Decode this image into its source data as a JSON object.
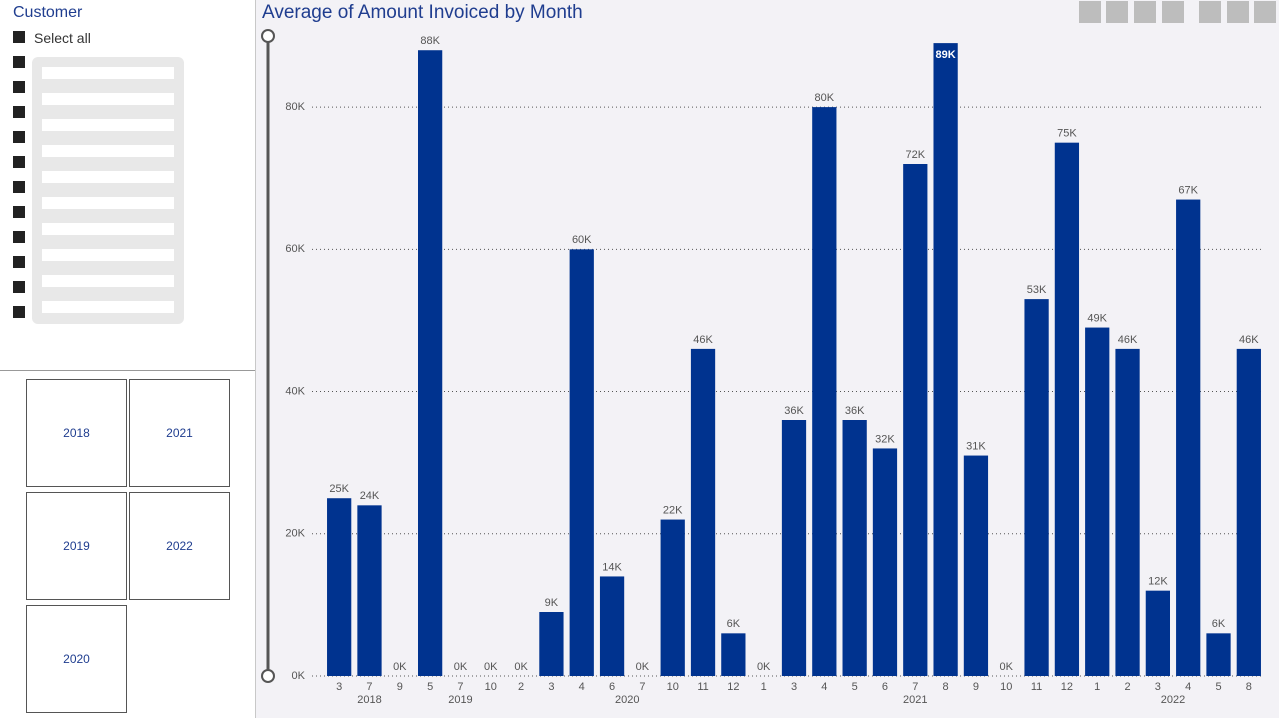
{
  "customer_slicer": {
    "title": "Customer",
    "select_all": "Select all"
  },
  "year_slicer": {
    "items": [
      "2018",
      "2019",
      "2020",
      "2021",
      "2022"
    ]
  },
  "chart_data": {
    "type": "bar",
    "title": "Average of Amount Invoiced by Month",
    "color": "#00338f",
    "ylim": [
      0,
      90000
    ],
    "yticks": [
      {
        "value": 0,
        "label": "0K"
      },
      {
        "value": 20000,
        "label": "20K"
      },
      {
        "value": 40000,
        "label": "40K"
      },
      {
        "value": 60000,
        "label": "60K"
      },
      {
        "value": 80000,
        "label": "80K"
      }
    ],
    "grid": true,
    "groups": [
      {
        "name": "2018",
        "categories": [
          "3",
          "7",
          "9"
        ],
        "values": [
          25000,
          24000,
          0
        ],
        "value_labels": [
          "25K",
          "24K",
          "0K"
        ]
      },
      {
        "name": "2019",
        "categories": [
          "5",
          "7",
          "10"
        ],
        "values": [
          88000,
          0,
          0
        ],
        "value_labels": [
          "88K",
          "0K",
          "0K"
        ]
      },
      {
        "name": "2020",
        "categories": [
          "2",
          "3",
          "4",
          "6",
          "7",
          "10",
          "11",
          "12"
        ],
        "values": [
          0,
          9000,
          60000,
          14000,
          0,
          22000,
          46000,
          6000
        ],
        "value_labels": [
          "0K",
          "9K",
          "60K",
          "14K",
          "0K",
          "22K",
          "46K",
          "6K"
        ]
      },
      {
        "name": "2021",
        "categories": [
          "1",
          "3",
          "4",
          "5",
          "6",
          "7",
          "8",
          "9",
          "10",
          "11",
          "12"
        ],
        "values": [
          0,
          36000,
          80000,
          36000,
          32000,
          72000,
          89000,
          31000,
          0,
          53000,
          75000
        ],
        "value_labels": [
          "0K",
          "36K",
          "80K",
          "36K",
          "32K",
          "72K",
          "89K",
          "31K",
          "0K",
          "53K",
          "75K"
        ]
      },
      {
        "name": "2022",
        "categories": [
          "1",
          "2",
          "3",
          "4",
          "5",
          "8"
        ],
        "values": [
          49000,
          46000,
          12000,
          67000,
          6000,
          46000
        ],
        "value_labels": [
          "49K",
          "46K",
          "12K",
          "67K",
          "6K",
          "46K"
        ]
      }
    ]
  }
}
